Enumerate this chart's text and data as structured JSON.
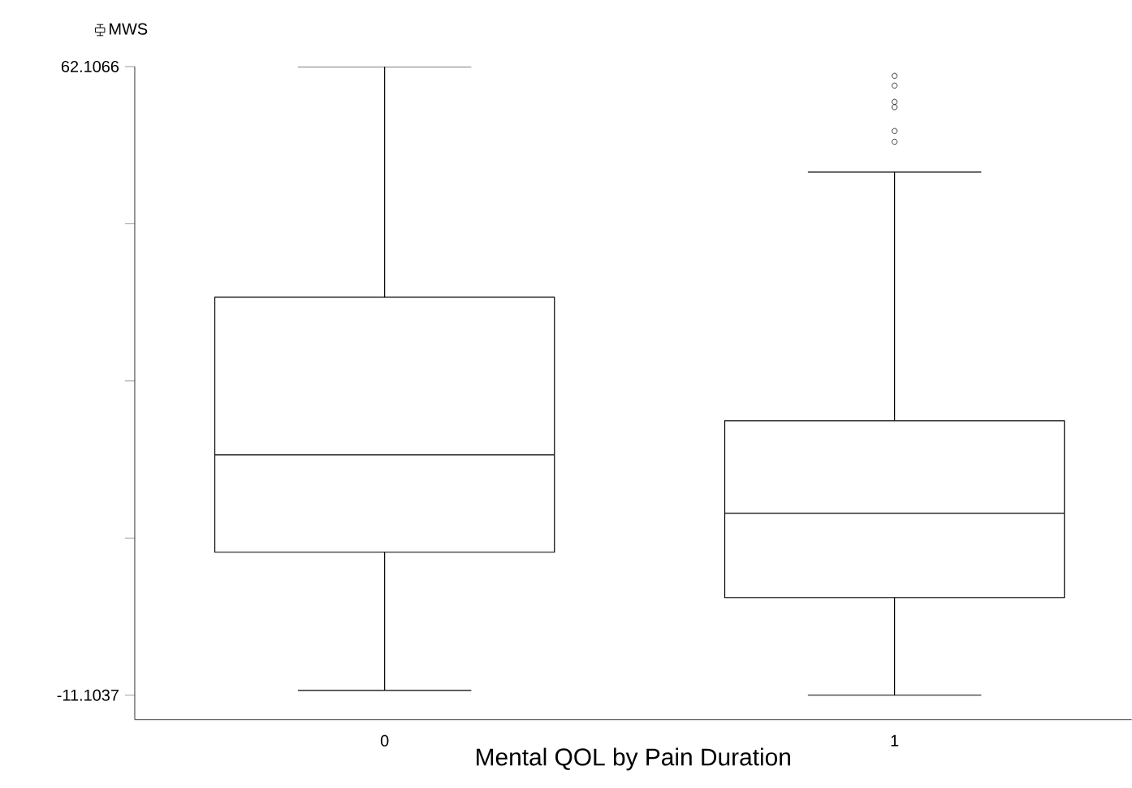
{
  "chart_data": {
    "type": "box",
    "xlabel": "Mental QOL by Pain Duration",
    "categories": [
      "0",
      "1"
    ],
    "series": [
      {
        "name": "MWS",
        "color": "#000000",
        "boxes": [
          {
            "low": -10.54,
            "q1": 5.55,
            "median": 16.89,
            "q3": 35.24,
            "high": 62.1066
          },
          {
            "low": -11.1037,
            "q1": 0.25,
            "median": 10.08,
            "q3": 20.87,
            "high": 49.81,
            "outliers": [
              61.03,
              59.89,
              58.0,
              57.38,
              54.6,
              53.35
            ]
          }
        ]
      }
    ],
    "ylim": [
      -13.94,
      62.1066
    ],
    "yticks": [
      -11.1037,
      {
        "value": 7.199,
        "label": null
      },
      {
        "value": 25.501,
        "label": null
      },
      {
        "value": 43.804,
        "label": null
      },
      62.1066
    ],
    "legend": "top left",
    "grid": false
  }
}
